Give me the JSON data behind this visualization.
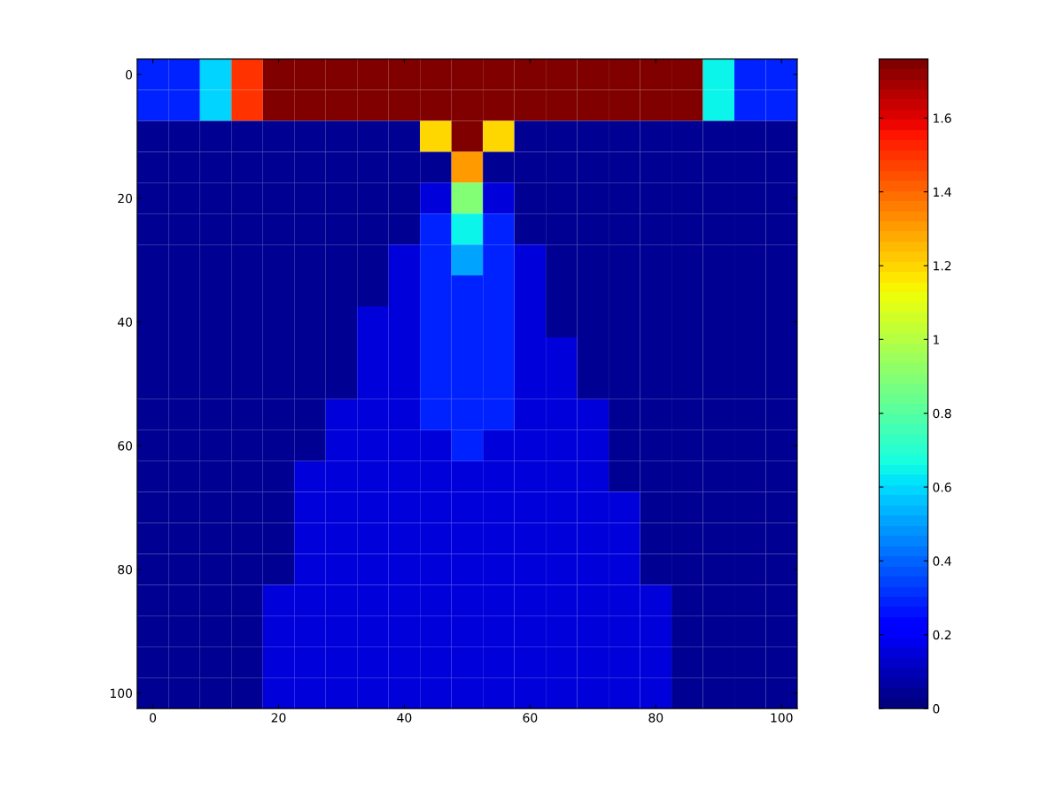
{
  "chart_data": {
    "type": "heatmap",
    "categories": [
      "0",
      null,
      null,
      null,
      "20",
      null,
      null,
      null,
      "40",
      null,
      null,
      null,
      "60",
      null,
      null,
      null,
      "80",
      null,
      null,
      null,
      "100"
    ],
    "y_categories": [
      "0",
      null,
      null,
      null,
      "20",
      null,
      null,
      null,
      "40",
      null,
      null,
      null,
      "60",
      null,
      null,
      null,
      "80",
      null,
      null,
      null,
      "100"
    ],
    "clim": [
      0,
      1.76
    ],
    "cticks": [
      0,
      0.2,
      0.4,
      0.6,
      0.8,
      1,
      1.2,
      1.4,
      1.6
    ],
    "cells": [
      [
        0.3,
        0.3,
        0.6,
        1.5,
        1.75,
        1.75,
        1.75,
        1.75,
        1.75,
        1.75,
        1.75,
        1.75,
        1.75,
        1.75,
        1.75,
        1.75,
        1.75,
        1.75,
        0.65,
        0.3,
        0.3
      ],
      [
        0.3,
        0.3,
        0.6,
        1.5,
        1.75,
        1.75,
        1.75,
        1.75,
        1.75,
        1.75,
        1.75,
        1.75,
        1.75,
        1.75,
        1.75,
        1.75,
        1.75,
        1.75,
        0.65,
        0.3,
        0.3
      ],
      [
        0.05,
        0.05,
        0.05,
        0.05,
        0.05,
        0.05,
        0.05,
        0.05,
        0.05,
        1.2,
        1.75,
        1.2,
        0.05,
        0.05,
        0.05,
        0.05,
        0.05,
        0.05,
        0.05,
        0.05,
        0.05
      ],
      [
        0.05,
        0.05,
        0.05,
        0.05,
        0.05,
        0.05,
        0.05,
        0.05,
        0.05,
        0.05,
        1.3,
        0.05,
        0.05,
        0.05,
        0.05,
        0.05,
        0.05,
        0.05,
        0.05,
        0.05,
        0.05
      ],
      [
        0.05,
        0.05,
        0.05,
        0.05,
        0.05,
        0.05,
        0.05,
        0.05,
        0.05,
        0.15,
        0.9,
        0.15,
        0.05,
        0.05,
        0.05,
        0.05,
        0.05,
        0.05,
        0.05,
        0.05,
        0.05
      ],
      [
        0.05,
        0.05,
        0.05,
        0.05,
        0.05,
        0.05,
        0.05,
        0.05,
        0.05,
        0.3,
        0.65,
        0.3,
        0.05,
        0.05,
        0.05,
        0.05,
        0.05,
        0.05,
        0.05,
        0.05,
        0.05
      ],
      [
        0.05,
        0.05,
        0.05,
        0.05,
        0.05,
        0.05,
        0.05,
        0.05,
        0.15,
        0.3,
        0.5,
        0.3,
        0.15,
        0.05,
        0.05,
        0.05,
        0.05,
        0.05,
        0.05,
        0.05,
        0.05
      ],
      [
        0.05,
        0.05,
        0.05,
        0.05,
        0.05,
        0.05,
        0.05,
        0.05,
        0.15,
        0.3,
        0.3,
        0.3,
        0.15,
        0.05,
        0.05,
        0.05,
        0.05,
        0.05,
        0.05,
        0.05,
        0.05
      ],
      [
        0.05,
        0.05,
        0.05,
        0.05,
        0.05,
        0.05,
        0.05,
        0.15,
        0.15,
        0.3,
        0.3,
        0.3,
        0.15,
        0.05,
        0.05,
        0.05,
        0.05,
        0.05,
        0.05,
        0.05,
        0.05
      ],
      [
        0.05,
        0.05,
        0.05,
        0.05,
        0.05,
        0.05,
        0.05,
        0.15,
        0.15,
        0.3,
        0.3,
        0.3,
        0.15,
        0.15,
        0.05,
        0.05,
        0.05,
        0.05,
        0.05,
        0.05,
        0.05
      ],
      [
        0.05,
        0.05,
        0.05,
        0.05,
        0.05,
        0.05,
        0.05,
        0.15,
        0.15,
        0.3,
        0.3,
        0.3,
        0.15,
        0.15,
        0.05,
        0.05,
        0.05,
        0.05,
        0.05,
        0.05,
        0.05
      ],
      [
        0.05,
        0.05,
        0.05,
        0.05,
        0.05,
        0.05,
        0.15,
        0.15,
        0.15,
        0.3,
        0.3,
        0.3,
        0.15,
        0.15,
        0.15,
        0.05,
        0.05,
        0.05,
        0.05,
        0.05,
        0.05
      ],
      [
        0.05,
        0.05,
        0.05,
        0.05,
        0.05,
        0.05,
        0.15,
        0.15,
        0.15,
        0.15,
        0.3,
        0.15,
        0.15,
        0.15,
        0.15,
        0.05,
        0.05,
        0.05,
        0.05,
        0.05,
        0.05
      ],
      [
        0.05,
        0.05,
        0.05,
        0.05,
        0.05,
        0.15,
        0.15,
        0.15,
        0.15,
        0.15,
        0.15,
        0.15,
        0.15,
        0.15,
        0.15,
        0.05,
        0.05,
        0.05,
        0.05,
        0.05,
        0.05
      ],
      [
        0.05,
        0.05,
        0.05,
        0.05,
        0.05,
        0.15,
        0.15,
        0.15,
        0.15,
        0.15,
        0.15,
        0.15,
        0.15,
        0.15,
        0.15,
        0.15,
        0.05,
        0.05,
        0.05,
        0.05,
        0.05
      ],
      [
        0.05,
        0.05,
        0.05,
        0.05,
        0.05,
        0.15,
        0.15,
        0.15,
        0.15,
        0.15,
        0.15,
        0.15,
        0.15,
        0.15,
        0.15,
        0.15,
        0.05,
        0.05,
        0.05,
        0.05,
        0.05
      ],
      [
        0.05,
        0.05,
        0.05,
        0.05,
        0.05,
        0.15,
        0.15,
        0.15,
        0.15,
        0.15,
        0.15,
        0.15,
        0.15,
        0.15,
        0.15,
        0.15,
        0.05,
        0.05,
        0.05,
        0.05,
        0.05
      ],
      [
        0.05,
        0.05,
        0.05,
        0.05,
        0.15,
        0.15,
        0.15,
        0.15,
        0.15,
        0.15,
        0.15,
        0.15,
        0.15,
        0.15,
        0.15,
        0.15,
        0.15,
        0.05,
        0.05,
        0.05,
        0.05
      ],
      [
        0.05,
        0.05,
        0.05,
        0.05,
        0.15,
        0.15,
        0.15,
        0.15,
        0.15,
        0.15,
        0.15,
        0.15,
        0.15,
        0.15,
        0.15,
        0.15,
        0.15,
        0.05,
        0.05,
        0.05,
        0.05
      ],
      [
        0.05,
        0.05,
        0.05,
        0.05,
        0.15,
        0.15,
        0.15,
        0.15,
        0.15,
        0.15,
        0.15,
        0.15,
        0.15,
        0.15,
        0.15,
        0.15,
        0.15,
        0.05,
        0.05,
        0.05,
        0.05
      ],
      [
        0.05,
        0.05,
        0.05,
        0.05,
        0.15,
        0.15,
        0.15,
        0.15,
        0.15,
        0.15,
        0.15,
        0.15,
        0.15,
        0.15,
        0.15,
        0.15,
        0.15,
        0.05,
        0.05,
        0.05,
        0.05
      ]
    ]
  }
}
